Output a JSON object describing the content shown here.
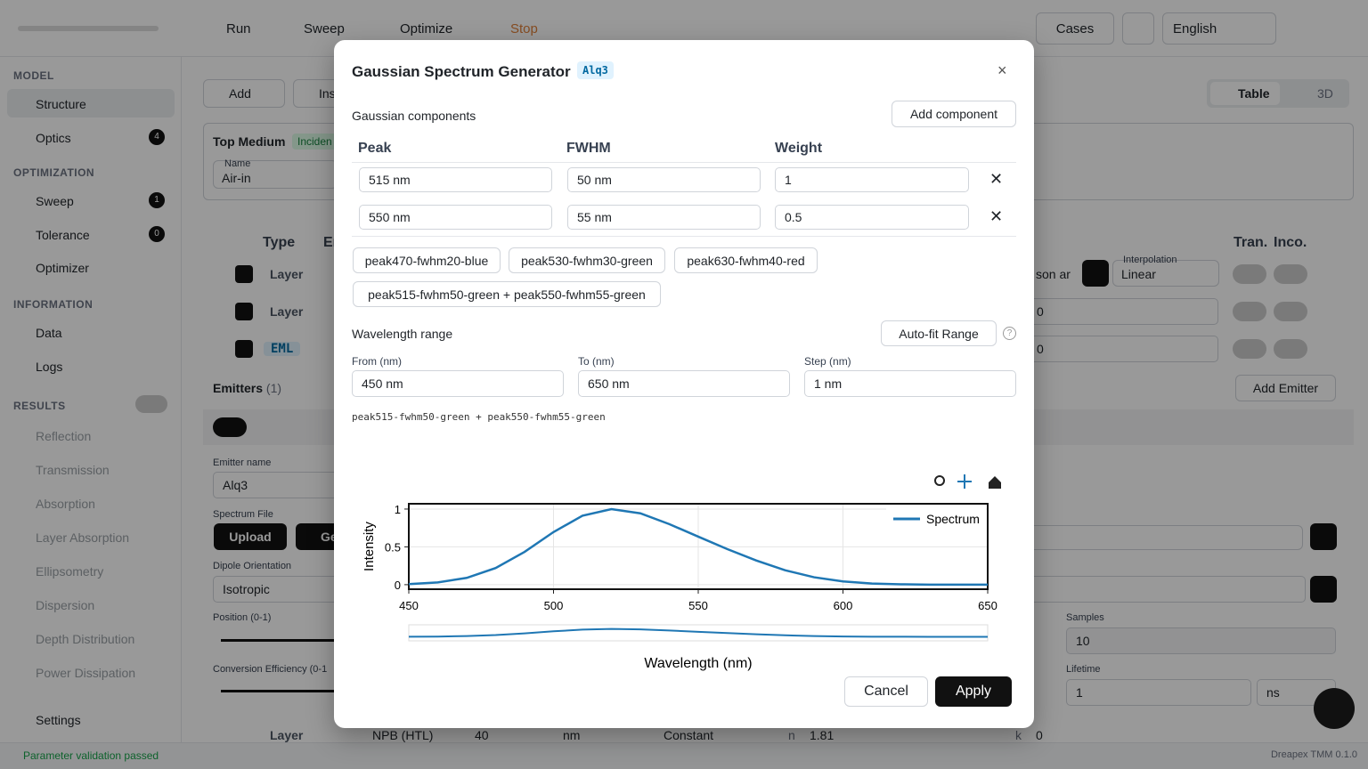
{
  "topbar": {
    "run": "Run",
    "sweep": "Sweep",
    "optimize": "Optimize",
    "stop": "Stop",
    "cases": "Cases",
    "language": "English"
  },
  "sidebar": {
    "model": "MODEL",
    "structure": "Structure",
    "optics": "Optics",
    "optics_badge": "4",
    "optimization": "OPTIMIZATION",
    "sweep": "Sweep",
    "sweep_badge": "1",
    "tolerance": "Tolerance",
    "tolerance_badge": "0",
    "optimizer": "Optimizer",
    "information": "INFORMATION",
    "data": "Data",
    "logs": "Logs",
    "results": "RESULTS",
    "result_items": [
      "Reflection",
      "Transmission",
      "Absorption",
      "Layer Absorption",
      "Ellipsometry",
      "Dispersion",
      "Depth Distribution",
      "Power Dissipation"
    ],
    "settings": "Settings"
  },
  "main": {
    "add": "Add",
    "insert": "Ins",
    "table": "Table",
    "view3d": "3D",
    "top_medium": "Top Medium",
    "incident": "Inciden",
    "name_label": "Name",
    "name_value": "Air-in",
    "col_type": "Type",
    "col_e": "Er",
    "col_tran": "Tran.",
    "col_inco": "Inco.",
    "rows": [
      "Layer",
      "Layer",
      "EML"
    ],
    "material": "son ar",
    "interpolation_label": "Interpolation",
    "interpolation": "Linear",
    "k_row2": "0",
    "k_row3": "0",
    "emitters": "Emitters",
    "emitters_count": "(1)",
    "add_emitter": "Add Emitter",
    "emitter_name_label": "Emitter name",
    "emitter_name": "Alq3",
    "spectrum_file": "Spectrum File",
    "upload": "Upload",
    "generate": "Ge",
    "dipole_label": "Dipole Orientation",
    "dipole": "Isotropic",
    "position_label": "Position (0-1)",
    "conversion_label": "Conversion Efficiency (0-1",
    "samples_label": "Samples",
    "samples": "10",
    "lifetime_label": "Lifetime",
    "lifetime": "1",
    "lifetime_unit": "ns",
    "last_row": {
      "type": "Layer",
      "name": "NPB (HTL)",
      "thickness": "40",
      "unit": "nm",
      "model": "Constant",
      "n_label": "n",
      "n": "1.81",
      "k_label": "k",
      "k": "0"
    }
  },
  "status": {
    "message": "Parameter validation passed",
    "version": "Dreapex TMM 0.1.0"
  },
  "modal": {
    "title": "Gaussian Spectrum Generator",
    "badge": "Alq3",
    "components_label": "Gaussian components",
    "add_component": "Add component",
    "columns": [
      "Peak",
      "FWHM",
      "Weight"
    ],
    "components": [
      [
        "515 nm",
        "50 nm",
        "1"
      ],
      [
        "550 nm",
        "55 nm",
        "0.5"
      ]
    ],
    "presets": [
      "peak470-fwhm20-blue",
      "peak530-fwhm30-green",
      "peak630-fwhm40-red",
      "peak515-fwhm50-green + peak550-fwhm55-green"
    ],
    "range_label": "Wavelength range",
    "autofit": "Auto-fit Range",
    "from_label": "From (nm)",
    "from": "450 nm",
    "to_label": "To (nm)",
    "to": "650 nm",
    "step_label": "Step (nm)",
    "step": "1 nm",
    "preview": "peak515-fwhm50-green + peak550-fwhm55-green",
    "cancel": "Cancel",
    "apply": "Apply"
  },
  "chart_data": {
    "type": "line",
    "xlabel": "Wavelength (nm)",
    "ylabel": "Intensity",
    "x": [
      450,
      460,
      470,
      480,
      490,
      500,
      510,
      520,
      530,
      540,
      550,
      560,
      570,
      580,
      590,
      600,
      610,
      620,
      630,
      640,
      650
    ],
    "series": [
      {
        "name": "Spectrum",
        "color": "#1f77b4",
        "values": [
          0.008,
          0.03,
          0.09,
          0.22,
          0.434,
          0.696,
          0.912,
          0.999,
          0.944,
          0.801,
          0.635,
          0.471,
          0.32,
          0.191,
          0.098,
          0.043,
          0.015,
          0.005,
          0.001,
          0,
          0
        ]
      }
    ],
    "xlim": [
      450,
      650
    ],
    "ylim": [
      -0.06,
      1.07
    ],
    "xticks": [
      450,
      500,
      550,
      600,
      650
    ],
    "yticks": [
      0,
      0.5,
      1
    ],
    "grid": true,
    "legend": "upper right"
  }
}
